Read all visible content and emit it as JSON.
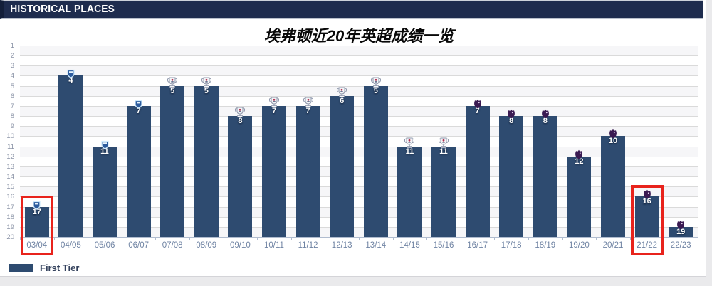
{
  "header": {
    "title": "HISTORICAL PLACES"
  },
  "chart_data": {
    "type": "bar",
    "title": "埃弗顿近20年英超成绩一览",
    "categories": [
      "03/04",
      "04/05",
      "05/06",
      "06/07",
      "07/08",
      "08/09",
      "09/10",
      "10/11",
      "11/12",
      "12/13",
      "13/14",
      "14/15",
      "15/16",
      "16/17",
      "17/18",
      "18/19",
      "19/20",
      "20/21",
      "21/22",
      "22/23"
    ],
    "values": [
      17,
      4,
      11,
      7,
      5,
      5,
      8,
      7,
      7,
      6,
      5,
      11,
      11,
      7,
      8,
      8,
      12,
      10,
      16,
      19
    ],
    "bar_icons": [
      "barclays-crest-icon",
      "barclays-crest-icon",
      "barclays-crest-icon",
      "barclays-crest-icon",
      "barclays-trophy-icon",
      "barclays-trophy-icon",
      "barclays-trophy-icon",
      "barclays-trophy-icon",
      "barclays-trophy-icon",
      "barclays-trophy-icon",
      "barclays-trophy-icon",
      "barclays-trophy-icon",
      "barclays-trophy-icon",
      "pl-lion-icon",
      "pl-lion-icon",
      "pl-lion-icon",
      "pl-lion-icon",
      "pl-lion-icon",
      "pl-lion-icon",
      "pl-lion-icon"
    ],
    "highlighted_categories": [
      "03/04",
      "21/22"
    ],
    "y_axis": {
      "min": 1,
      "max": 20,
      "tick_step": 1,
      "inverted": true
    },
    "grid": true,
    "legend": {
      "position": "bottom-left",
      "entries": [
        {
          "label": "First Tier",
          "color": "#2e4b70"
        }
      ]
    },
    "colors": {
      "bar": "#2e4b70",
      "highlight_box": "#e8231c",
      "grid": "#dadada",
      "axis": "#b0bccf",
      "x_label": "#6f83a3",
      "y_label": "#8a93a6",
      "header_bg": "#1e2c4e",
      "value_label": "#ffffff"
    }
  }
}
